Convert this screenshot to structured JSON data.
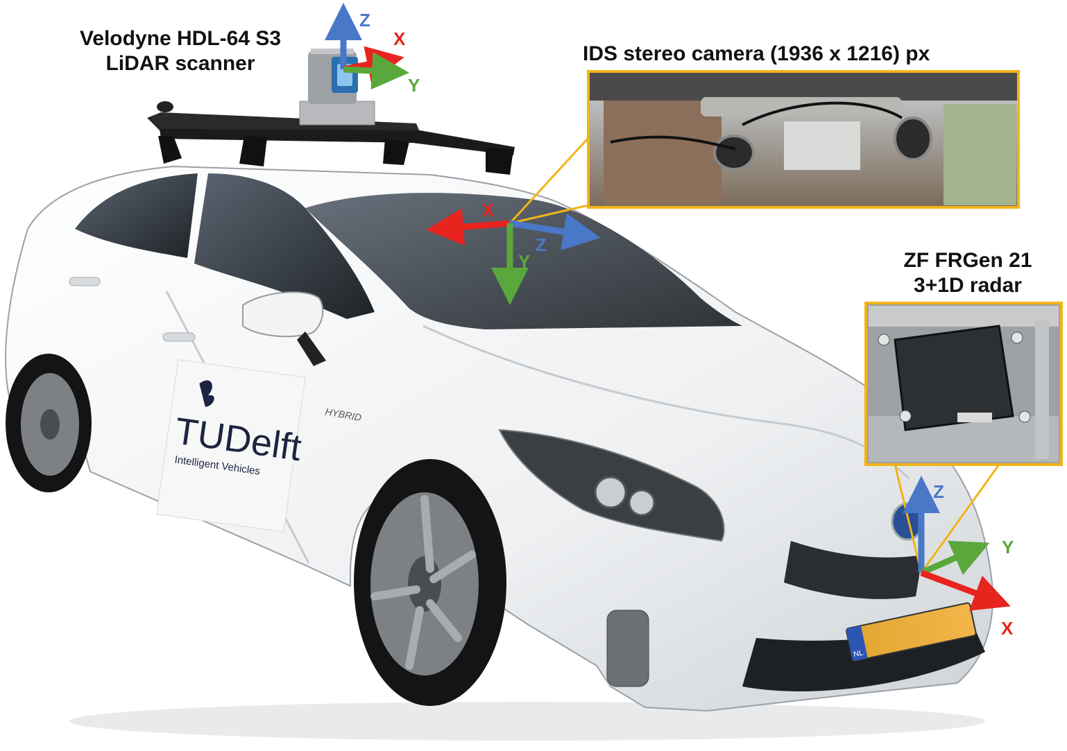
{
  "colors": {
    "axis_x": "#e8241e",
    "axis_y": "#5aa83c",
    "axis_z": "#4a78c8",
    "inset_border": "#f2b417",
    "car_body": "#f4f5f6",
    "glass": "#2e3338"
  },
  "sensors": {
    "lidar": {
      "title_line1": "Velodyne HDL-64 S3",
      "title_line2": "LiDAR scanner",
      "axes": {
        "x": "X",
        "y": "Y",
        "z": "Z"
      }
    },
    "camera": {
      "title": "IDS stereo camera (1936 x 1216) px",
      "axes": {
        "x": "X",
        "y": "Y",
        "z": "Z"
      }
    },
    "radar": {
      "title_line1": "ZF FRGen 21",
      "title_line2": "3+1D radar",
      "axes": {
        "x": "X",
        "y": "Y",
        "z": "Z"
      }
    }
  },
  "car": {
    "door_logo_main": "TUDelft",
    "door_logo_sub": "Intelligent Vehicles",
    "badge": "HYBRID",
    "plate_country": "NL"
  }
}
